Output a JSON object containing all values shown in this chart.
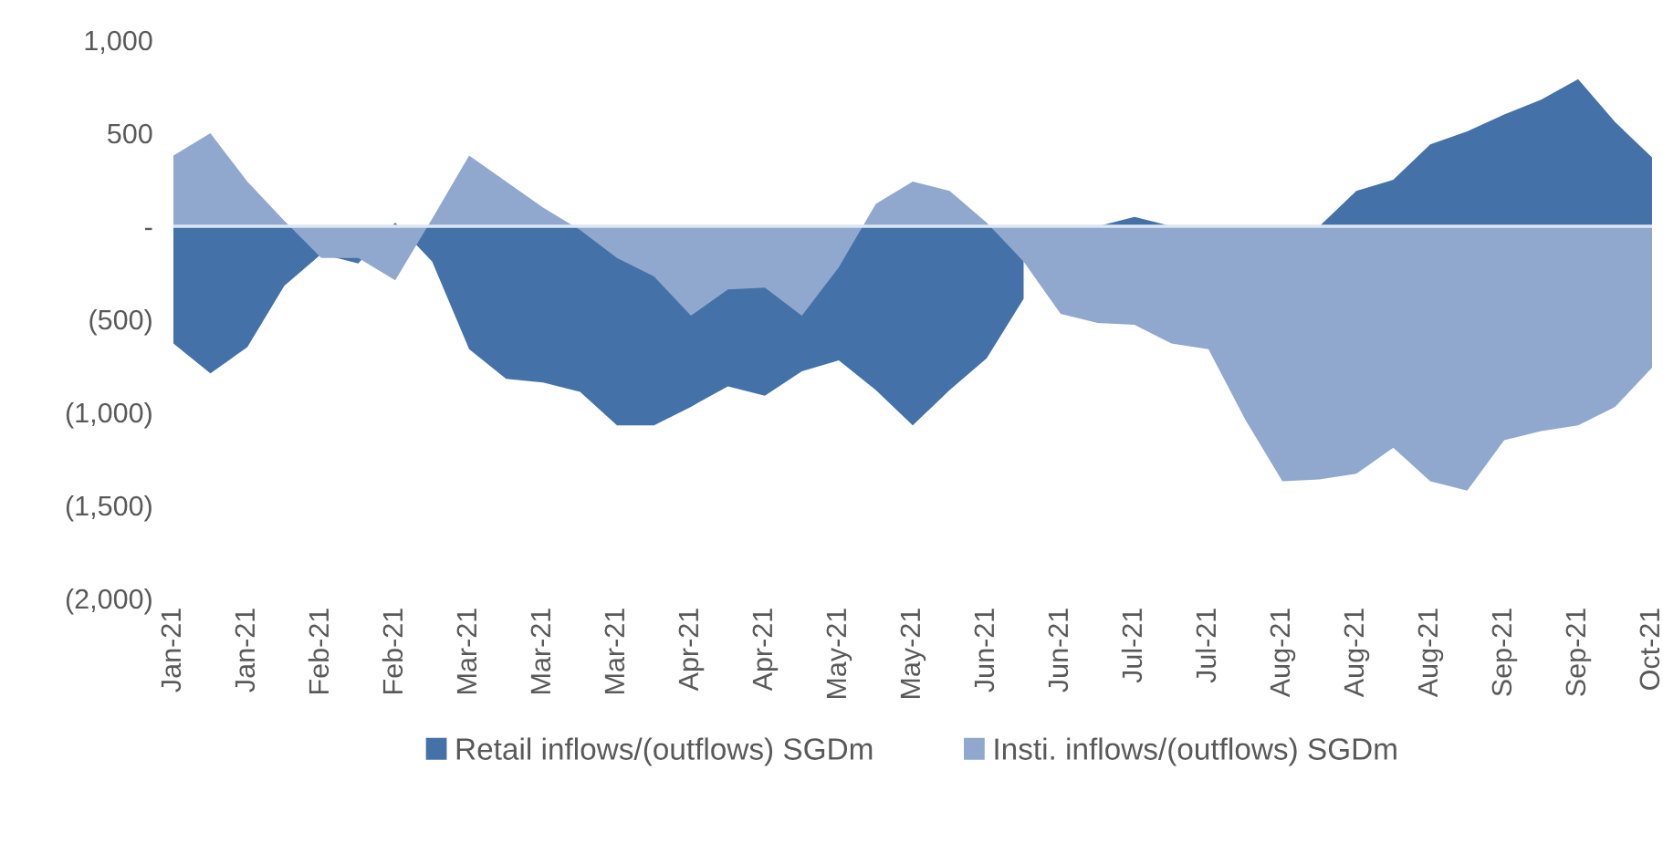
{
  "chart_data": {
    "type": "area",
    "categories": [
      "Jan-21",
      null,
      "Jan-21",
      null,
      "Feb-21",
      null,
      "Feb-21",
      null,
      "Mar-21",
      null,
      "Mar-21",
      null,
      "Mar-21",
      null,
      "Apr-21",
      null,
      "Apr-21",
      null,
      "May-21",
      null,
      "May-21",
      null,
      "Jun-21",
      null,
      "Jun-21",
      null,
      "Jul-21",
      null,
      "Jul-21",
      null,
      "Aug-21",
      null,
      "Aug-21",
      null,
      "Aug-21",
      null,
      "Sep-21",
      null,
      "Sep-21",
      null,
      "Oct-21"
    ],
    "series": [
      {
        "name": "Retail inflows/(outflows) SGDm",
        "color": "#4472a8",
        "values": [
          -630,
          -790,
          -650,
          -320,
          -150,
          -200,
          20,
          -190,
          -660,
          -820,
          -840,
          -890,
          -1070,
          -1070,
          -970,
          -860,
          -910,
          -780,
          -720,
          -880,
          -1070,
          -880,
          -710,
          -390,
          null,
          0,
          50,
          0,
          null,
          null,
          null,
          0,
          190,
          250,
          440,
          510,
          600,
          680,
          790,
          560,
          370
        ]
      },
      {
        "name": "Insti. inflows/(outflows) SGDm",
        "color": "#91a8ce",
        "values": [
          380,
          500,
          240,
          30,
          -170,
          -170,
          -290,
          40,
          380,
          240,
          100,
          -20,
          -170,
          -270,
          -480,
          -340,
          -330,
          -480,
          -220,
          120,
          240,
          190,
          20,
          -190,
          -470,
          -520,
          -530,
          -630,
          -660,
          -1040,
          -1370,
          -1360,
          -1330,
          -1190,
          -1370,
          -1420,
          -1150,
          -1100,
          -1070,
          -970,
          -760
        ]
      }
    ],
    "ylim": [
      -2000,
      1000
    ],
    "yticks": [
      {
        "value": 1000,
        "label": "1,000"
      },
      {
        "value": 500,
        "label": "500"
      },
      {
        "value": 0,
        "label": "-"
      },
      {
        "value": -500,
        "label": "(500)"
      },
      {
        "value": -1000,
        "label": "(1,000)"
      },
      {
        "value": -1500,
        "label": "(1,500)"
      },
      {
        "value": -2000,
        "label": "(2,000)"
      }
    ],
    "grid": false,
    "ref_lines": [
      {
        "axis": "y",
        "value": 0,
        "color": "#dde6f3"
      }
    ],
    "legend": "bottom"
  }
}
